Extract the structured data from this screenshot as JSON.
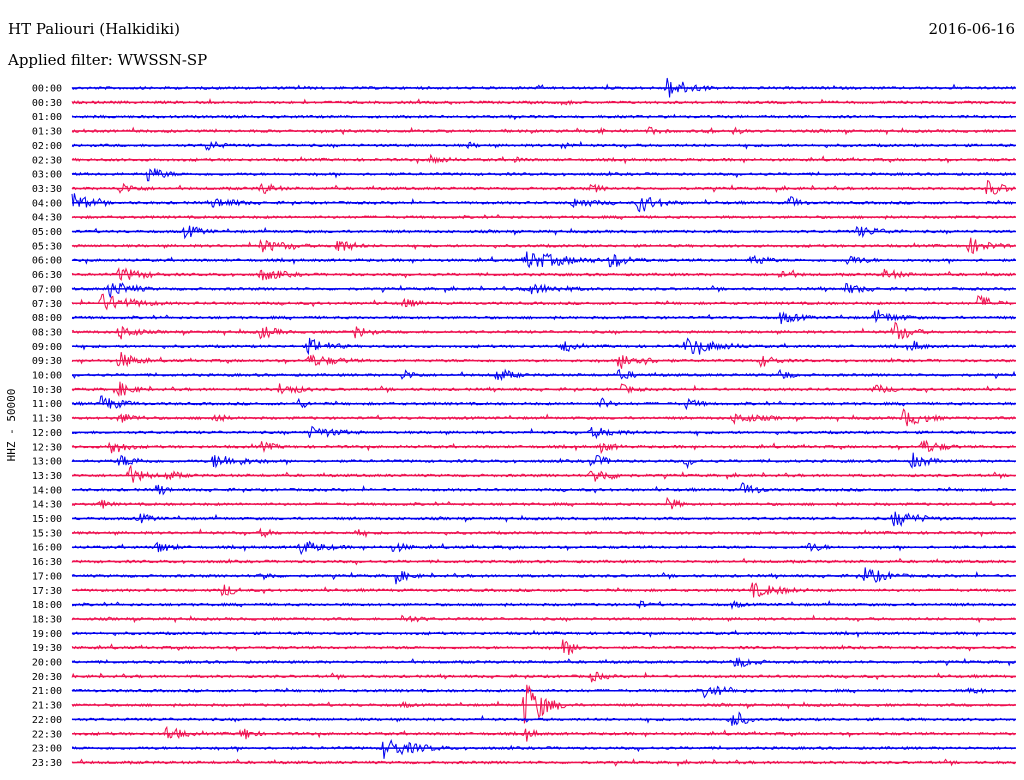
{
  "header": {
    "station": "HT Paliouri (Halkidiki)",
    "date": "2016-06-16",
    "filter": "Applied filter: WWSSN-SP"
  },
  "chart_data": {
    "type": "line",
    "title": "HT Paliouri (Halkidiki)",
    "subtitle": "Applied filter: WWSSN-SP",
    "ylabel": "HHZ - 50000",
    "xlabel": "",
    "grid": false,
    "colors": {
      "even": "#0000ee",
      "odd": "#ee1150"
    },
    "rows": [
      {
        "label": "00:00",
        "events": [
          [
            0.63,
            12,
            4
          ]
        ]
      },
      {
        "label": "00:30",
        "events": [
          [
            0.52,
            4,
            2
          ]
        ]
      },
      {
        "label": "01:00",
        "events": []
      },
      {
        "label": "01:30",
        "events": [
          [
            0.56,
            5,
            2
          ],
          [
            0.61,
            5,
            3
          ],
          [
            0.67,
            5,
            2
          ],
          [
            0.7,
            4,
            3
          ]
        ]
      },
      {
        "label": "02:00",
        "events": [
          [
            0.14,
            7,
            3
          ],
          [
            0.42,
            4,
            2
          ],
          [
            0.52,
            5,
            2
          ]
        ]
      },
      {
        "label": "02:30",
        "events": [
          [
            0.38,
            5,
            4
          ],
          [
            0.47,
            4,
            2
          ]
        ]
      },
      {
        "label": "03:00",
        "events": [
          [
            0.08,
            9,
            3
          ]
        ]
      },
      {
        "label": "03:30",
        "events": [
          [
            0.05,
            6,
            4
          ],
          [
            0.2,
            7,
            3
          ],
          [
            0.55,
            5,
            3
          ],
          [
            0.97,
            10,
            3
          ]
        ]
      },
      {
        "label": "04:00",
        "events": [
          [
            0.0,
            12,
            3
          ],
          [
            0.15,
            6,
            5
          ],
          [
            0.53,
            6,
            5
          ],
          [
            0.6,
            10,
            4
          ],
          [
            0.76,
            8,
            2
          ]
        ]
      },
      {
        "label": "04:30",
        "events": []
      },
      {
        "label": "05:00",
        "events": [
          [
            0.12,
            8,
            3
          ],
          [
            0.83,
            6,
            6
          ]
        ]
      },
      {
        "label": "05:30",
        "events": [
          [
            0.2,
            7,
            6
          ],
          [
            0.28,
            9,
            3
          ],
          [
            0.95,
            9,
            4
          ]
        ]
      },
      {
        "label": "06:00",
        "events": [
          [
            0.48,
            10,
            8
          ],
          [
            0.57,
            8,
            4
          ],
          [
            0.72,
            7,
            3
          ],
          [
            0.82,
            6,
            4
          ]
        ]
      },
      {
        "label": "06:30",
        "events": [
          [
            0.05,
            8,
            5
          ],
          [
            0.2,
            7,
            5
          ],
          [
            0.75,
            6,
            3
          ],
          [
            0.86,
            6,
            4
          ]
        ]
      },
      {
        "label": "07:00",
        "events": [
          [
            0.04,
            10,
            4
          ],
          [
            0.48,
            6,
            8
          ],
          [
            0.82,
            6,
            4
          ]
        ]
      },
      {
        "label": "07:30",
        "events": [
          [
            0.03,
            10,
            6
          ],
          [
            0.35,
            6,
            3
          ],
          [
            0.96,
            9,
            3
          ]
        ]
      },
      {
        "label": "08:00",
        "events": [
          [
            0.75,
            7,
            4
          ],
          [
            0.85,
            7,
            5
          ]
        ]
      },
      {
        "label": "08:30",
        "events": [
          [
            0.05,
            9,
            3
          ],
          [
            0.2,
            8,
            3
          ],
          [
            0.3,
            7,
            3
          ],
          [
            0.87,
            12,
            3
          ]
        ]
      },
      {
        "label": "09:00",
        "events": [
          [
            0.25,
            9,
            4
          ],
          [
            0.52,
            8,
            2
          ],
          [
            0.65,
            10,
            6
          ],
          [
            0.89,
            7,
            2
          ]
        ]
      },
      {
        "label": "09:30",
        "events": [
          [
            0.05,
            10,
            3
          ],
          [
            0.25,
            7,
            6
          ],
          [
            0.58,
            9,
            5
          ],
          [
            0.73,
            7,
            3
          ]
        ]
      },
      {
        "label": "10:00",
        "events": [
          [
            0.35,
            6,
            3
          ],
          [
            0.45,
            8,
            3
          ],
          [
            0.58,
            6,
            3
          ],
          [
            0.75,
            7,
            2
          ]
        ]
      },
      {
        "label": "10:30",
        "events": [
          [
            0.05,
            8,
            3
          ],
          [
            0.22,
            7,
            4
          ],
          [
            0.58,
            6,
            3
          ],
          [
            0.85,
            6,
            3
          ]
        ]
      },
      {
        "label": "11:00",
        "events": [
          [
            0.03,
            9,
            4
          ],
          [
            0.24,
            6,
            2
          ],
          [
            0.56,
            7,
            2
          ],
          [
            0.65,
            6,
            3
          ]
        ]
      },
      {
        "label": "11:30",
        "events": [
          [
            0.05,
            6,
            4
          ],
          [
            0.15,
            7,
            2
          ],
          [
            0.7,
            6,
            6
          ],
          [
            0.88,
            10,
            4
          ]
        ]
      },
      {
        "label": "12:00",
        "events": [
          [
            0.25,
            7,
            6
          ],
          [
            0.55,
            6,
            6
          ]
        ]
      },
      {
        "label": "12:30",
        "events": [
          [
            0.04,
            9,
            3
          ],
          [
            0.2,
            6,
            3
          ],
          [
            0.56,
            6,
            3
          ],
          [
            0.9,
            8,
            4
          ]
        ]
      },
      {
        "label": "13:00",
        "events": [
          [
            0.05,
            7,
            4
          ],
          [
            0.15,
            8,
            6
          ],
          [
            0.55,
            8,
            3
          ],
          [
            0.65,
            6,
            2
          ],
          [
            0.89,
            9,
            3
          ]
        ]
      },
      {
        "label": "13:30",
        "events": [
          [
            0.06,
            10,
            3
          ],
          [
            0.1,
            6,
            3
          ],
          [
            0.55,
            9,
            4
          ]
        ]
      },
      {
        "label": "14:00",
        "events": [
          [
            0.09,
            7,
            2
          ],
          [
            0.71,
            8,
            3
          ]
        ]
      },
      {
        "label": "14:30",
        "events": [
          [
            0.03,
            6,
            2
          ],
          [
            0.63,
            9,
            2
          ]
        ]
      },
      {
        "label": "15:00",
        "events": [
          [
            0.07,
            6,
            3
          ],
          [
            0.87,
            9,
            5
          ]
        ]
      },
      {
        "label": "15:30",
        "events": [
          [
            0.2,
            5,
            3
          ],
          [
            0.3,
            5,
            2
          ]
        ]
      },
      {
        "label": "16:00",
        "events": [
          [
            0.09,
            7,
            3
          ],
          [
            0.24,
            8,
            5
          ],
          [
            0.34,
            6,
            3
          ],
          [
            0.78,
            6,
            3
          ]
        ]
      },
      {
        "label": "16:30",
        "events": []
      },
      {
        "label": "17:00",
        "events": [
          [
            0.2,
            5,
            3
          ],
          [
            0.34,
            8,
            3
          ],
          [
            0.84,
            10,
            4
          ]
        ]
      },
      {
        "label": "17:30",
        "events": [
          [
            0.16,
            9,
            2
          ],
          [
            0.72,
            8,
            6
          ]
        ]
      },
      {
        "label": "18:00",
        "events": [
          [
            0.6,
            5,
            2
          ],
          [
            0.7,
            5,
            2
          ]
        ]
      },
      {
        "label": "18:30",
        "events": [
          [
            0.35,
            5,
            4
          ]
        ]
      },
      {
        "label": "19:00",
        "events": []
      },
      {
        "label": "19:30",
        "events": [
          [
            0.52,
            9,
            3
          ]
        ]
      },
      {
        "label": "20:00",
        "events": [
          [
            0.7,
            7,
            4
          ]
        ]
      },
      {
        "label": "20:30",
        "events": [
          [
            0.55,
            6,
            3
          ]
        ]
      },
      {
        "label": "21:00",
        "events": [
          [
            0.67,
            7,
            5
          ],
          [
            0.95,
            4,
            4
          ]
        ]
      },
      {
        "label": "21:30",
        "events": [
          [
            0.48,
            28,
            3
          ],
          [
            0.35,
            4,
            2
          ]
        ]
      },
      {
        "label": "22:00",
        "events": [
          [
            0.7,
            12,
            2
          ]
        ]
      },
      {
        "label": "22:30",
        "events": [
          [
            0.1,
            9,
            3
          ],
          [
            0.18,
            9,
            2
          ],
          [
            0.48,
            7,
            2
          ]
        ]
      },
      {
        "label": "23:00",
        "events": [
          [
            0.33,
            11,
            6
          ]
        ]
      },
      {
        "label": "23:30",
        "events": []
      }
    ]
  }
}
